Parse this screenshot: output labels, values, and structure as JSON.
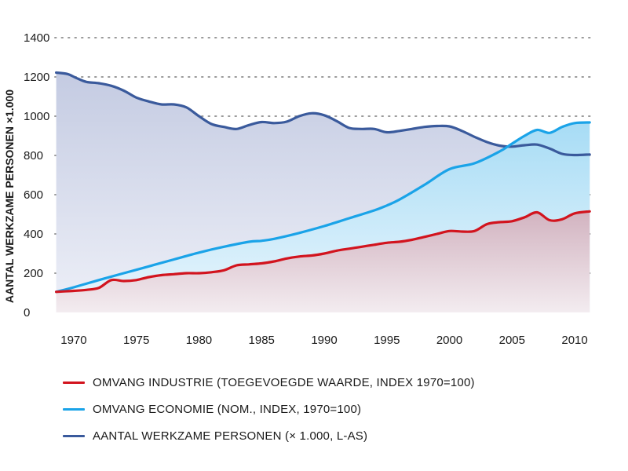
{
  "chart_data": {
    "type": "area",
    "title": "",
    "ylabel": "AANTAL WERKZAME PERSONEN ×1.000",
    "xlabel": "",
    "xlim": [
      1968.5,
      2011.5
    ],
    "ylim": [
      0,
      1400
    ],
    "yticks": [
      0,
      200,
      400,
      600,
      800,
      1000,
      1200,
      1400
    ],
    "xticks": [
      1970,
      1975,
      1980,
      1985,
      1990,
      1995,
      2000,
      2005,
      2010
    ],
    "grid": "horizontal dotted",
    "legend_position": "bottom",
    "series": [
      {
        "name": "AANTAL WERKZAME PERSONEN (× 1.000, L-AS)",
        "color": "#3a5a9c",
        "x": [
          1968.6,
          1969.5,
          1970.2,
          1971,
          1972,
          1973,
          1974,
          1975,
          1976,
          1977,
          1978,
          1979,
          1980,
          1981,
          1982,
          1983,
          1984,
          1985,
          1986,
          1987,
          1988,
          1989,
          1990,
          1991,
          1992,
          1993,
          1994,
          1995,
          1996,
          1997,
          1998,
          1999,
          2000,
          2001,
          2002,
          2003,
          2004,
          2005,
          2006,
          2007,
          2008,
          2009,
          2010,
          2011.2
        ],
        "values": [
          1222,
          1215,
          1195,
          1175,
          1168,
          1155,
          1130,
          1095,
          1075,
          1060,
          1060,
          1045,
          1000,
          960,
          945,
          935,
          955,
          970,
          965,
          972,
          1000,
          1015,
          1005,
          975,
          940,
          935,
          935,
          918,
          925,
          935,
          945,
          950,
          948,
          925,
          895,
          868,
          850,
          845,
          852,
          855,
          835,
          808,
          802,
          805
        ]
      },
      {
        "name": "OMVANG ECONOMIE (NOM., INDEX, 1970=100)",
        "color": "#1aa3e8",
        "x": [
          1968.6,
          1970,
          1972,
          1974,
          1976,
          1978,
          1980,
          1982,
          1984,
          1985,
          1986,
          1988,
          1990,
          1992,
          1994,
          1995,
          1996,
          1998,
          2000,
          2002,
          2004,
          2005,
          2006,
          2007,
          2008,
          2009,
          2010,
          2011.2
        ],
        "values": [
          105,
          128,
          165,
          200,
          235,
          270,
          305,
          335,
          360,
          365,
          375,
          405,
          440,
          480,
          520,
          545,
          575,
          650,
          730,
          760,
          820,
          860,
          900,
          930,
          915,
          945,
          965,
          968
        ]
      },
      {
        "name": "OMVANG INDUSTRIE (TOEGEVOEGDE WAARDE, INDEX 1970=100)",
        "color": "#d2141e",
        "x": [
          1968.6,
          1970,
          1971,
          1972,
          1973,
          1974,
          1975,
          1976,
          1977,
          1978,
          1979,
          1980,
          1981,
          1982,
          1983,
          1984,
          1985,
          1986,
          1987,
          1988,
          1989,
          1990,
          1991,
          1992,
          1993,
          1994,
          1995,
          1996,
          1997,
          1998,
          1999,
          2000,
          2001,
          2002,
          2003,
          2004,
          2005,
          2006,
          2007,
          2008,
          2009,
          2010,
          2011.2
        ],
        "values": [
          105,
          110,
          115,
          125,
          165,
          160,
          165,
          180,
          190,
          195,
          200,
          200,
          205,
          215,
          240,
          245,
          250,
          260,
          275,
          285,
          290,
          300,
          315,
          325,
          335,
          345,
          355,
          360,
          370,
          385,
          400,
          415,
          412,
          415,
          450,
          460,
          465,
          485,
          510,
          470,
          475,
          505,
          515
        ]
      }
    ]
  },
  "legend": [
    {
      "label": "OMVANG INDUSTRIE (TOEGEVOEGDE WAARDE, INDEX 1970=100)",
      "color": "#d2141e"
    },
    {
      "label": "OMVANG ECONOMIE (NOM., INDEX, 1970=100)",
      "color": "#1aa3e8"
    },
    {
      "label": "AANTAL WERKZAME PERSONEN (× 1.000, L-AS)",
      "color": "#3a5a9c"
    }
  ]
}
